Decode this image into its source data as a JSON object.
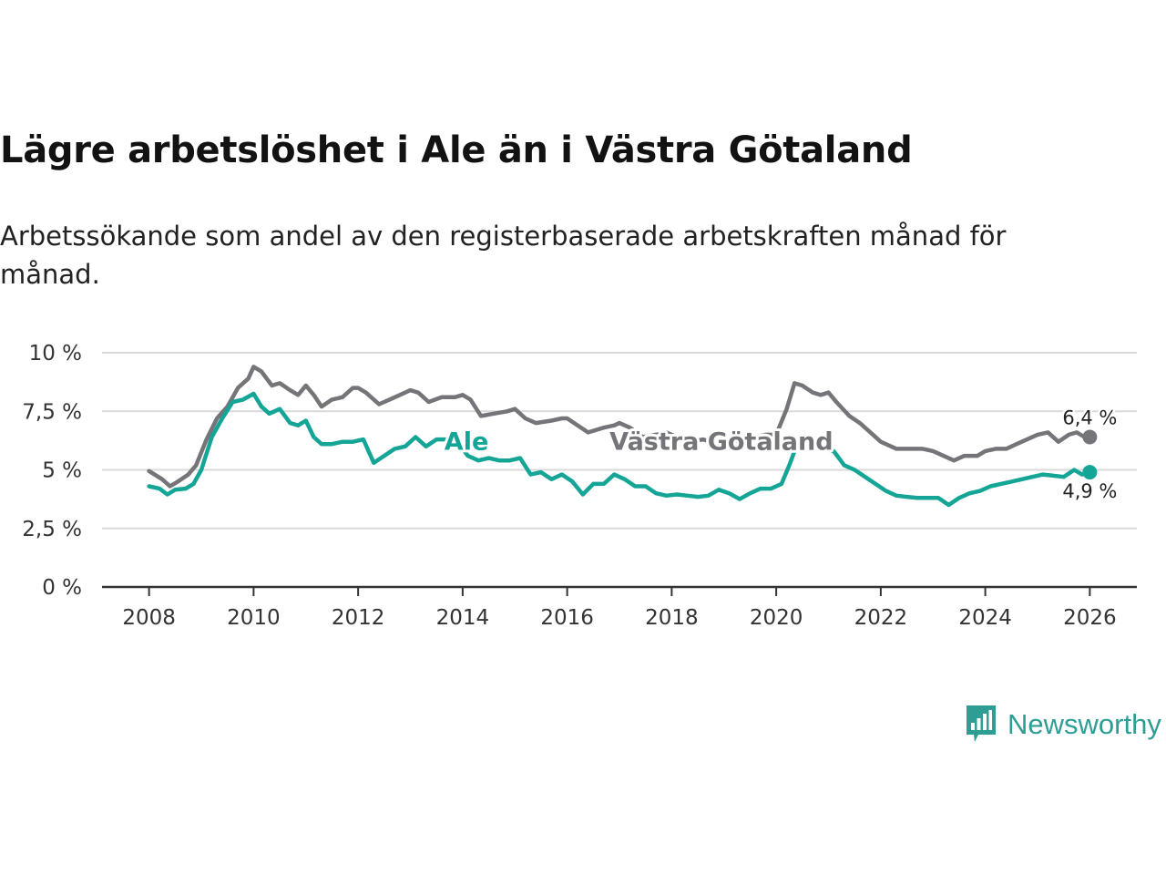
{
  "title": "Lägre arbetslöshet i Ale än i Västra Götaland",
  "subtitle": "Arbetssökande som andel av den registerbaserade arbetskraften månad för månad.",
  "brand": "Newsworthy",
  "colors": {
    "vg": "#757478",
    "ale": "#14a596",
    "brand": "#2e9e94"
  },
  "chart_data": {
    "type": "line",
    "title": "Lägre arbetslöshet i Ale än i Västra Götaland",
    "xlabel": "",
    "ylabel": "",
    "xlim": [
      2007.1,
      2026.9
    ],
    "ylim": [
      0,
      10
    ],
    "y_ticks": [
      0,
      2.5,
      5,
      7.5,
      10
    ],
    "y_tick_labels": [
      "0 %",
      "2,5 %",
      "5 %",
      "7,5 %",
      "10 %"
    ],
    "x_ticks": [
      2008,
      2010,
      2012,
      2014,
      2016,
      2018,
      2020,
      2022,
      2024,
      2026
    ],
    "x_tick_labels": [
      "2008",
      "2010",
      "2012",
      "2014",
      "2016",
      "2018",
      "2020",
      "2022",
      "2024",
      "2026"
    ],
    "series": [
      {
        "name": "Västra Götaland",
        "label": "Västra Götaland",
        "end_label": "6,4 %",
        "x": [
          2008.0,
          2008.25,
          2008.4,
          2008.55,
          2008.75,
          2008.9,
          2009.1,
          2009.3,
          2009.5,
          2009.7,
          2009.9,
          2010.0,
          2010.15,
          2010.35,
          2010.5,
          2010.7,
          2010.85,
          2011.0,
          2011.15,
          2011.3,
          2011.5,
          2011.7,
          2011.9,
          2012.0,
          2012.15,
          2012.4,
          2012.6,
          2012.8,
          2013.0,
          2013.15,
          2013.35,
          2013.6,
          2013.85,
          2014.0,
          2014.15,
          2014.35,
          2014.6,
          2014.85,
          2015.0,
          2015.2,
          2015.4,
          2015.7,
          2015.9,
          2016.0,
          2016.2,
          2016.4,
          2016.7,
          2016.9,
          2017.0,
          2017.2,
          2017.45,
          2017.7,
          2017.9,
          2018.1,
          2018.35,
          2018.6,
          2018.9,
          2019.1,
          2019.3,
          2019.6,
          2019.8,
          2020.0,
          2020.2,
          2020.35,
          2020.5,
          2020.7,
          2020.85,
          2021.0,
          2021.15,
          2021.4,
          2021.6,
          2021.85,
          2022.0,
          2022.3,
          2022.6,
          2022.8,
          2023.0,
          2023.2,
          2023.4,
          2023.6,
          2023.85,
          2024.0,
          2024.2,
          2024.4,
          2024.6,
          2024.8,
          2025.0,
          2025.2,
          2025.4,
          2025.6,
          2025.75,
          2025.9,
          2026.0
        ],
        "values": [
          4.95,
          4.6,
          4.3,
          4.5,
          4.8,
          5.2,
          6.3,
          7.2,
          7.7,
          8.5,
          8.9,
          9.4,
          9.2,
          8.6,
          8.7,
          8.4,
          8.2,
          8.6,
          8.2,
          7.7,
          8.0,
          8.1,
          8.5,
          8.5,
          8.3,
          7.8,
          8.0,
          8.2,
          8.4,
          8.3,
          7.9,
          8.1,
          8.1,
          8.2,
          8.0,
          7.3,
          7.4,
          7.5,
          7.6,
          7.2,
          7.0,
          7.1,
          7.2,
          7.2,
          6.9,
          6.6,
          6.8,
          6.9,
          7.0,
          6.8,
          6.4,
          6.5,
          6.6,
          6.4,
          6.2,
          6.3,
          6.1,
          6.1,
          6.3,
          6.4,
          6.5,
          6.5,
          7.6,
          8.7,
          8.6,
          8.3,
          8.2,
          8.3,
          7.9,
          7.3,
          7.0,
          6.5,
          6.2,
          5.9,
          5.9,
          5.9,
          5.8,
          5.6,
          5.4,
          5.6,
          5.6,
          5.8,
          5.9,
          5.9,
          6.1,
          6.3,
          6.5,
          6.6,
          6.2,
          6.5,
          6.6,
          6.4,
          6.4
        ]
      },
      {
        "name": "Ale",
        "label": "Ale",
        "end_label": "4,9 %",
        "x": [
          2008.0,
          2008.2,
          2008.35,
          2008.5,
          2008.7,
          2008.85,
          2009.0,
          2009.2,
          2009.4,
          2009.6,
          2009.8,
          2010.0,
          2010.15,
          2010.3,
          2010.5,
          2010.7,
          2010.85,
          2011.0,
          2011.15,
          2011.3,
          2011.5,
          2011.7,
          2011.9,
          2012.1,
          2012.3,
          2012.5,
          2012.7,
          2012.9,
          2013.1,
          2013.3,
          2013.5,
          2013.7,
          2013.9,
          2014.1,
          2014.3,
          2014.5,
          2014.7,
          2014.9,
          2015.1,
          2015.3,
          2015.5,
          2015.7,
          2015.9,
          2016.1,
          2016.3,
          2016.5,
          2016.7,
          2016.9,
          2017.1,
          2017.3,
          2017.5,
          2017.7,
          2017.9,
          2018.1,
          2018.3,
          2018.5,
          2018.7,
          2018.9,
          2019.1,
          2019.3,
          2019.5,
          2019.7,
          2019.9,
          2020.1,
          2020.25,
          2020.4,
          2020.6,
          2020.75,
          2020.9,
          2021.1,
          2021.3,
          2021.5,
          2021.7,
          2021.9,
          2022.1,
          2022.3,
          2022.5,
          2022.7,
          2022.9,
          2023.1,
          2023.3,
          2023.5,
          2023.7,
          2023.9,
          2024.1,
          2024.3,
          2024.5,
          2024.7,
          2024.9,
          2025.1,
          2025.3,
          2025.5,
          2025.7,
          2025.85,
          2026.0
        ],
        "values": [
          4.3,
          4.2,
          3.95,
          4.15,
          4.2,
          4.4,
          5.0,
          6.4,
          7.2,
          7.9,
          8.0,
          8.25,
          7.7,
          7.4,
          7.6,
          7.0,
          6.9,
          7.1,
          6.4,
          6.1,
          6.1,
          6.2,
          6.2,
          6.3,
          5.3,
          5.6,
          5.9,
          6.0,
          6.4,
          6.0,
          6.3,
          6.3,
          6.2,
          5.6,
          5.4,
          5.5,
          5.4,
          5.4,
          5.5,
          4.8,
          4.9,
          4.6,
          4.8,
          4.5,
          3.95,
          4.4,
          4.4,
          4.8,
          4.6,
          4.3,
          4.3,
          4.0,
          3.9,
          3.95,
          3.9,
          3.85,
          3.9,
          4.15,
          4.0,
          3.75,
          4.0,
          4.2,
          4.2,
          4.4,
          5.2,
          6.1,
          6.3,
          6.0,
          5.9,
          5.8,
          5.2,
          5.0,
          4.7,
          4.4,
          4.1,
          3.9,
          3.85,
          3.8,
          3.8,
          3.8,
          3.5,
          3.8,
          4.0,
          4.1,
          4.3,
          4.4,
          4.5,
          4.6,
          4.7,
          4.8,
          4.75,
          4.7,
          5.0,
          4.8,
          4.9
        ]
      }
    ]
  }
}
